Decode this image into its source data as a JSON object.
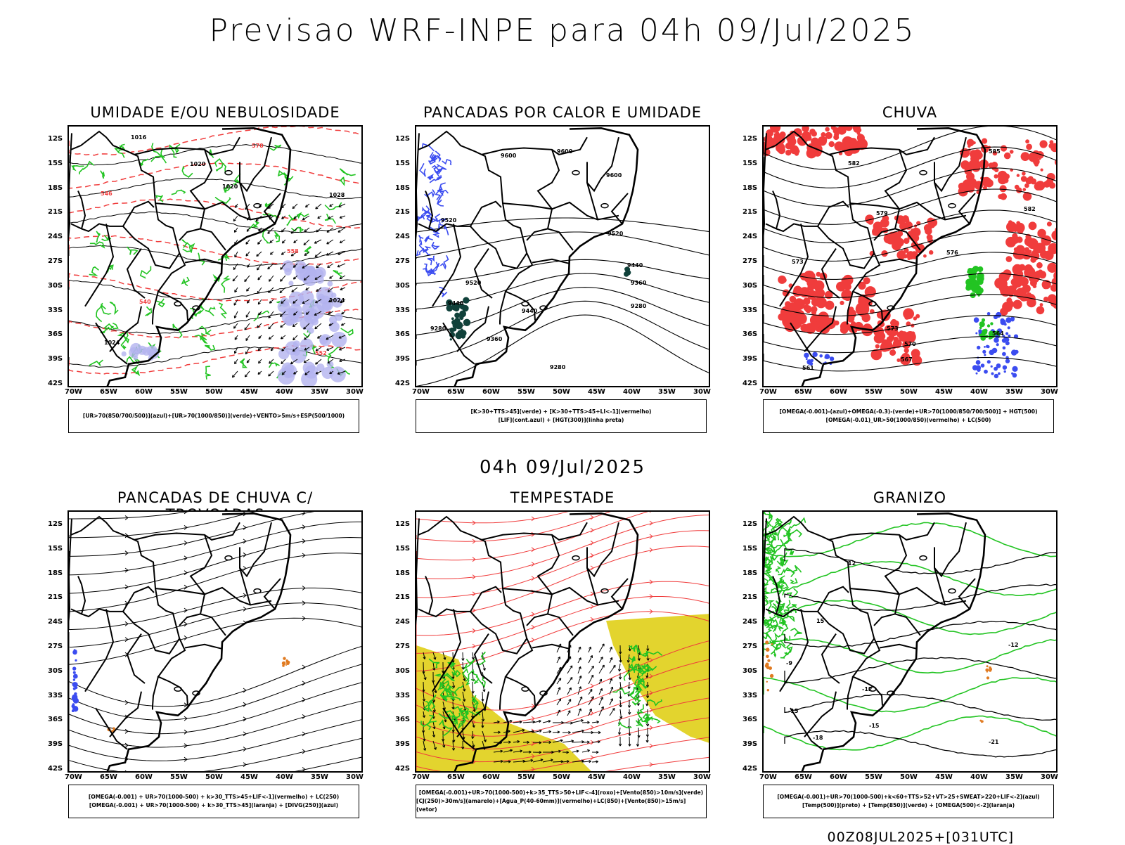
{
  "title": "Previsao WRF-INPE  para 04h 09/Jul/2025",
  "mid_label": "04h 09/Jul/2025",
  "run_label": "00Z08JUL2025+[031UTC]",
  "lat_labels": [
    "12S",
    "15S",
    "18S",
    "21S",
    "24S",
    "27S",
    "30S",
    "33S",
    "36S",
    "39S",
    "42S"
  ],
  "lon_labels": [
    "70W",
    "65W",
    "60W",
    "55W",
    "50W",
    "45W",
    "40W",
    "35W",
    "30W"
  ],
  "panels": [
    {
      "id": "umidade",
      "title": "UMIDADE E/OU NEBULOSIDADE",
      "legend": [
        "[UR>70(850/700/500)](azul)+[UR>70(1000/850)](verde)+VENTO>5m/s+ESP(500/1000)"
      ],
      "contour_labels": [
        "1016",
        "1020",
        "1024",
        "1028",
        "564",
        "570",
        "576",
        "558",
        "552",
        "546",
        "540"
      ]
    },
    {
      "id": "pancadas-calor",
      "title": "PANCADAS POR CALOR E UMIDADE",
      "legend": [
        "[K>30+TTS>45](verde) + [K>30+TTS>45+LI<-1](vermelho)",
        "[LIF](cont.azul) + [HGT(300)](linha preta)"
      ],
      "contour_labels": [
        "9600",
        "9520",
        "9440",
        "9360",
        "9280"
      ]
    },
    {
      "id": "chuva",
      "title": "CHUVA",
      "legend": [
        "[OMEGA(-0.001)-(azul)+OMEGA(-0.3)-(verde)+UR>70(1000/850/700/500)] + HGT(500)",
        "[OMEGA(-0.01)_UR>50(1000/850)(vermelho) + LC(500)"
      ],
      "contour_labels": [
        "585",
        "582",
        "579",
        "576",
        "573",
        "570",
        "567",
        "564",
        "561"
      ]
    },
    {
      "id": "pancadas-trovoadas",
      "title": "PANCADAS DE CHUVA C/ TROVOADAS",
      "legend": [
        "[OMEGA(-0.001) + UR>70(1000-500) + k>30_TTS>45+LIF<-1](vermelho) + LC(250)",
        "[OMEGA(-0.001) + UR>70(1000-500) + k>30_TTS>45](laranja) + [DIVG(250)](azul)"
      ],
      "contour_labels": []
    },
    {
      "id": "tempestade",
      "title": "TEMPESTADE",
      "legend": [
        "[OMEGA(-0.001)+UR>70(1000-500)+k>35_TTS>50+LIF<-4](roxo)+[Vento(850)>10m/s](verde)",
        "[CJ(250)>30m/s](amarelo)+[Agua_P(40-60mm)](vermelho)+LC(850)+[Vento(850)>15m/s](vetor)"
      ],
      "contour_labels": []
    },
    {
      "id": "granizo",
      "title": "GRANIZO",
      "legend": [
        "[OMEGA(-0.001)+UR>70(1000-500)+k<60+TTS>52+VT>25+SWEAT>220+LIF<-2](azul)",
        "[Temp(500)](preto) + [Temp(850)](verde) + [OMEGA(500)<-2](laranja)"
      ],
      "contour_labels": [
        "-9",
        "-12",
        "-15",
        "-18",
        "-21",
        "12",
        "15"
      ]
    }
  ],
  "colors": {
    "green": "#22c422",
    "red": "#f03c3c",
    "blue": "#3b4cf0",
    "lavender": "#b3b3ef",
    "yellow": "#e3d42e",
    "orange": "#e07a20",
    "darkteal": "#10413a"
  }
}
